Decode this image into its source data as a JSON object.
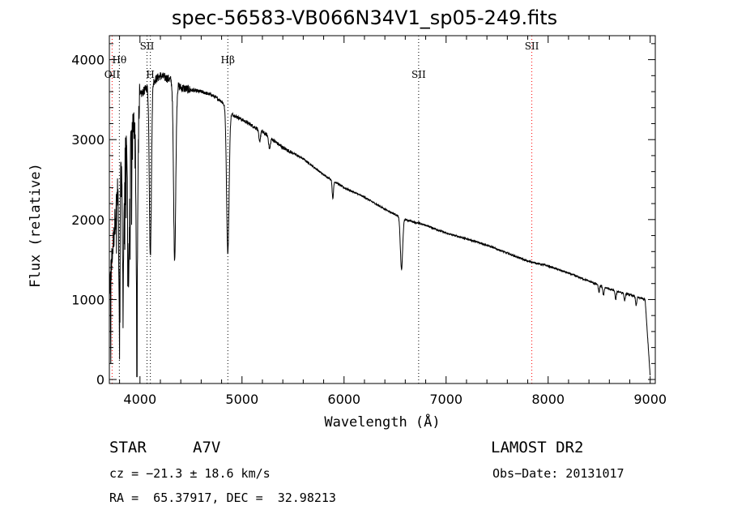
{
  "chart_data": {
    "type": "line",
    "title": "spec-56583-VB066N34V1_sp05-249.fits",
    "xlabel": "Wavelength (Å)",
    "ylabel": "Flux (relative)",
    "xlim": [
      3700,
      9050
    ],
    "ylim": [
      -50,
      4300
    ],
    "x_ticks": [
      "4000",
      "5000",
      "6000",
      "7000",
      "8000",
      "9000"
    ],
    "y_ticks": [
      "0",
      "1000",
      "2000",
      "3000",
      "4000"
    ],
    "line_color": "#000000",
    "marker_color": "#ff0000",
    "spectral_lines": [
      {
        "name": "OII",
        "wavelength": 3727,
        "color": "#ff0000",
        "label_level": "low"
      },
      {
        "name": "Hθ",
        "wavelength": 3798,
        "color": "#000000",
        "label_level": "high"
      },
      {
        "name": "SII",
        "wavelength": 4069,
        "color": "#000000",
        "label_level": "top"
      },
      {
        "name": "H",
        "wavelength": 4102,
        "color": "#000000",
        "label_level": "low"
      },
      {
        "name": "Hβ",
        "wavelength": 4861,
        "color": "#000000",
        "label_level": "high"
      },
      {
        "name": "SII",
        "wavelength": 6731,
        "color": "#000000",
        "label_level": "low"
      },
      {
        "name": "SII",
        "wavelength": 7840,
        "color": "#ff0000",
        "label_level": "top"
      }
    ],
    "series": [
      {
        "continuum": [
          [
            3700,
            1100
          ],
          [
            3800,
            2700
          ],
          [
            3900,
            3000
          ],
          [
            4000,
            3550
          ],
          [
            4100,
            3700
          ],
          [
            4200,
            3800
          ],
          [
            4300,
            3750
          ],
          [
            4400,
            3650
          ],
          [
            4500,
            3620
          ],
          [
            4600,
            3600
          ],
          [
            4700,
            3560
          ],
          [
            4800,
            3480
          ],
          [
            4900,
            3320
          ],
          [
            5000,
            3250
          ],
          [
            5200,
            3100
          ],
          [
            5400,
            2900
          ],
          [
            5600,
            2760
          ],
          [
            5800,
            2560
          ],
          [
            6000,
            2400
          ],
          [
            6200,
            2280
          ],
          [
            6400,
            2130
          ],
          [
            6600,
            2000
          ],
          [
            6800,
            1930
          ],
          [
            7000,
            1830
          ],
          [
            7200,
            1760
          ],
          [
            7400,
            1680
          ],
          [
            7600,
            1580
          ],
          [
            7800,
            1480
          ],
          [
            8000,
            1420
          ],
          [
            8200,
            1330
          ],
          [
            8400,
            1230
          ],
          [
            8600,
            1130
          ],
          [
            8800,
            1060
          ],
          [
            8950,
            1000
          ],
          [
            9000,
            50
          ]
        ],
        "absorption_lines": [
          {
            "center": 3798,
            "depth": 1800,
            "width": 6
          },
          {
            "center": 3835,
            "depth": 1700,
            "width": 7
          },
          {
            "center": 3889,
            "depth": 1800,
            "width": 8
          },
          {
            "center": 3970,
            "depth": 2500,
            "width": 8
          },
          {
            "center": 4102,
            "depth": 2150,
            "width": 10
          },
          {
            "center": 4340,
            "depth": 2200,
            "width": 11
          },
          {
            "center": 4861,
            "depth": 1800,
            "width": 12
          },
          {
            "center": 5172,
            "depth": 150,
            "width": 8
          },
          {
            "center": 5270,
            "depth": 150,
            "width": 8
          },
          {
            "center": 5890,
            "depth": 230,
            "width": 6
          },
          {
            "center": 6563,
            "depth": 650,
            "width": 11
          },
          {
            "center": 8498,
            "depth": 90,
            "width": 6
          },
          {
            "center": 8542,
            "depth": 110,
            "width": 6
          },
          {
            "center": 8662,
            "depth": 110,
            "width": 6
          },
          {
            "center": 8750,
            "depth": 90,
            "width": 6
          },
          {
            "center": 8863,
            "depth": 110,
            "width": 6
          }
        ]
      }
    ]
  },
  "info": {
    "object_type": "STAR",
    "spectral_class": "A7V",
    "survey": "LAMOST DR2",
    "cz": "cz = −21.3 ± 18.6 km/s",
    "obs_date": "Obs−Date: 20131017",
    "coords": "RA =  65.37917, DEC =  32.98213"
  }
}
